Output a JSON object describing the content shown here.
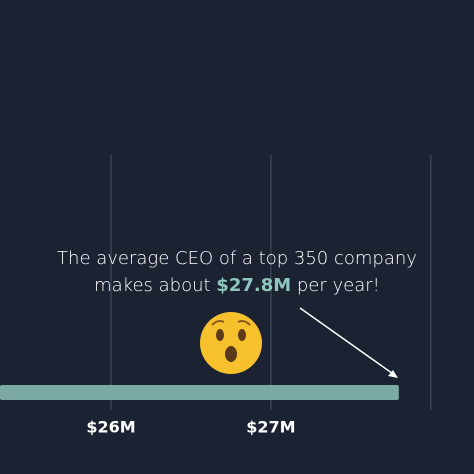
{
  "chart_data": {
    "type": "bar",
    "orientation": "horizontal",
    "categories": [
      null
    ],
    "values": [
      27.8
    ],
    "color": "#7aaaa3",
    "xlim": [
      25.306,
      28.27
    ],
    "xticks": [
      {
        "value": 26,
        "label": "$26M"
      },
      {
        "value": 27,
        "label": "$27M"
      },
      {
        "value": 28,
        "label": null
      }
    ],
    "grid": true,
    "annotation": {
      "line1": "The average CEO of a top 350 company",
      "line2_before": "makes about ",
      "line2_highlight": "$27.8M",
      "line2_after": " per year!",
      "highlight_color": "#8fc7be"
    }
  }
}
